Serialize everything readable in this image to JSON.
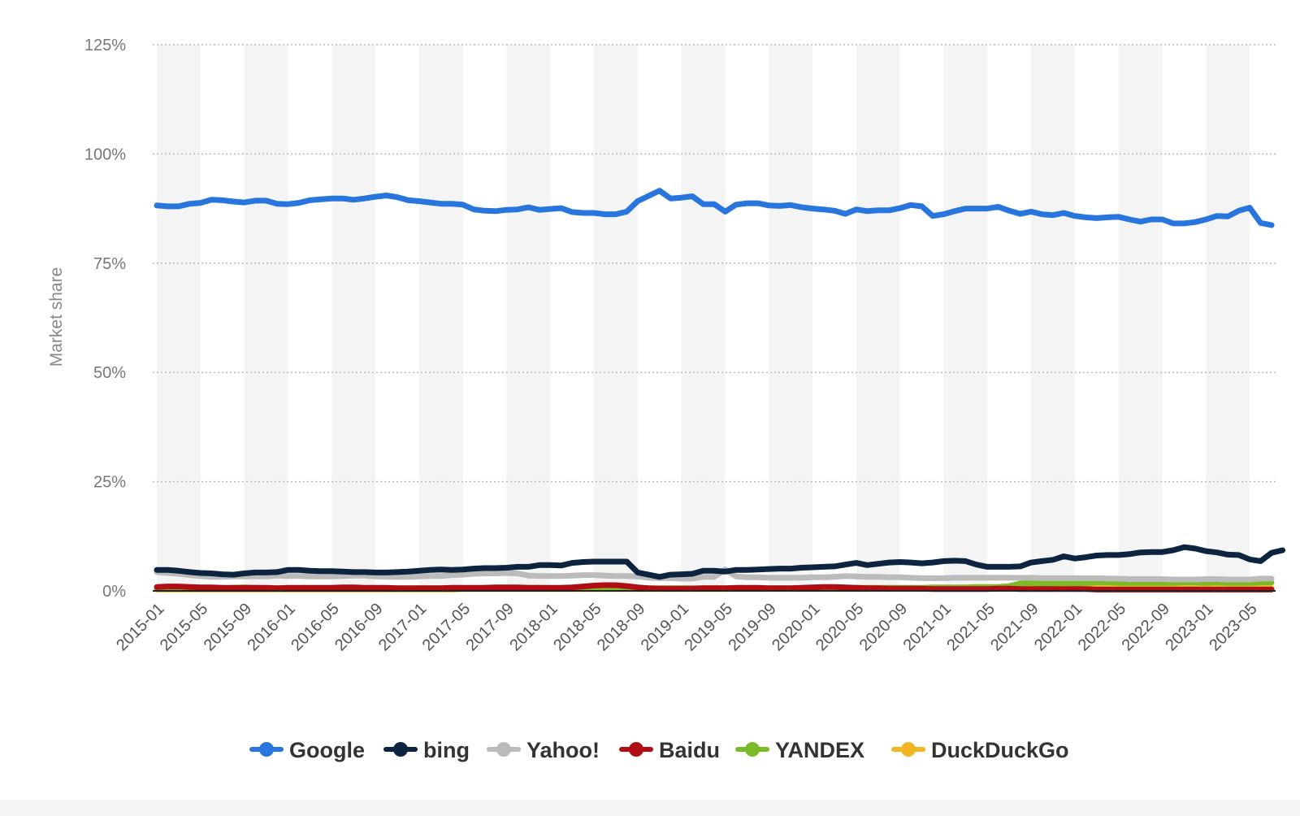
{
  "chart_data": {
    "type": "line",
    "title": "",
    "xlabel": "",
    "ylabel": "Market share",
    "ylim": [
      0,
      125
    ],
    "y_ticks": [
      "0%",
      "25%",
      "50%",
      "75%",
      "100%",
      "125%"
    ],
    "y_tick_values": [
      0,
      25,
      50,
      75,
      100,
      125
    ],
    "grid": true,
    "legend_position": "bottom",
    "x_tick_labels": [
      "2015-01",
      "2015-05",
      "2015-09",
      "2016-01",
      "2016-05",
      "2016-09",
      "2017-01",
      "2017-05",
      "2017-09",
      "2018-01",
      "2018-05",
      "2018-09",
      "2019-01",
      "2019-05",
      "2019-09",
      "2020-01",
      "2020-05",
      "2020-09",
      "2021-01",
      "2021-05",
      "2021-09",
      "2022-01",
      "2022-05",
      "2022-09",
      "2023-01",
      "2023-05"
    ],
    "x_start": "2015-01",
    "x_end": "2023-07",
    "series": [
      {
        "name": "Google",
        "color": "#2876DD",
        "values": [
          88.2,
          88.0,
          88.0,
          88.6,
          88.8,
          89.5,
          89.4,
          89.1,
          88.9,
          89.3,
          89.3,
          88.6,
          88.5,
          88.8,
          89.4,
          89.6,
          89.8,
          89.8,
          89.5,
          89.8,
          90.2,
          90.5,
          90.1,
          89.4,
          89.2,
          88.9,
          88.6,
          88.6,
          88.4,
          87.3,
          87.0,
          86.9,
          87.2,
          87.3,
          87.8,
          87.2,
          87.4,
          87.6,
          86.7,
          86.5,
          86.5,
          86.2,
          86.2,
          86.8,
          89.2,
          90.4,
          91.6,
          89.8,
          90.0,
          90.3,
          88.5,
          88.5,
          86.8,
          88.4,
          88.7,
          88.7,
          88.2,
          88.1,
          88.3,
          87.8,
          87.5,
          87.3,
          87.0,
          86.3,
          87.3,
          86.9,
          87.1,
          87.1,
          87.6,
          88.3,
          88.0,
          85.8,
          86.2,
          86.9,
          87.5,
          87.5,
          87.5,
          87.9,
          87.0,
          86.3,
          86.8,
          86.2,
          86.0,
          86.5,
          85.8,
          85.5,
          85.3,
          85.5,
          85.6,
          85.0,
          84.5,
          85.0,
          85.0,
          84.1,
          84.1,
          84.4,
          85.0,
          85.8,
          85.7,
          87.0,
          87.7,
          84.2,
          83.7
        ]
      },
      {
        "name": "bing",
        "color": "#0D2440",
        "values": [
          4.8,
          4.8,
          4.6,
          4.3,
          4.1,
          4.0,
          3.8,
          3.7,
          4.0,
          4.2,
          4.2,
          4.3,
          4.8,
          4.8,
          4.6,
          4.5,
          4.5,
          4.4,
          4.3,
          4.3,
          4.2,
          4.2,
          4.3,
          4.4,
          4.6,
          4.8,
          4.9,
          4.8,
          4.9,
          5.1,
          5.2,
          5.2,
          5.3,
          5.5,
          5.5,
          5.9,
          5.9,
          5.8,
          6.4,
          6.6,
          6.7,
          6.7,
          6.7,
          6.7,
          4.2,
          3.7,
          3.2,
          3.7,
          3.8,
          3.9,
          4.6,
          4.6,
          4.4,
          4.8,
          4.8,
          4.9,
          5.0,
          5.1,
          5.1,
          5.3,
          5.4,
          5.5,
          5.6,
          6.0,
          6.4,
          5.9,
          6.2,
          6.5,
          6.6,
          6.5,
          6.3,
          6.5,
          6.8,
          6.9,
          6.8,
          6.0,
          5.5,
          5.5,
          5.5,
          5.6,
          6.5,
          6.8,
          7.1,
          7.9,
          7.4,
          7.7,
          8.1,
          8.2,
          8.2,
          8.4,
          8.8,
          8.9,
          8.9,
          9.3,
          10.0,
          9.7,
          9.1,
          8.8,
          8.3,
          8.2,
          7.2,
          6.8,
          8.7,
          9.3
        ]
      },
      {
        "name": "Yahoo!",
        "color": "#BBBBBB",
        "values": [
          4.3,
          4.1,
          3.9,
          3.6,
          3.4,
          3.2,
          3.2,
          3.3,
          3.3,
          3.3,
          3.3,
          3.5,
          3.4,
          3.4,
          3.3,
          3.3,
          3.3,
          3.4,
          3.5,
          3.5,
          3.3,
          3.2,
          3.2,
          3.2,
          3.3,
          3.4,
          3.4,
          3.6,
          3.7,
          3.9,
          4.0,
          4.0,
          4.1,
          4.0,
          3.5,
          3.4,
          3.4,
          3.4,
          3.5,
          3.6,
          3.6,
          3.5,
          3.4,
          3.4,
          3.3,
          3.0,
          2.9,
          2.9,
          2.8,
          2.8,
          3.2,
          3.2,
          4.9,
          3.3,
          3.1,
          3.1,
          3.0,
          3.0,
          3.0,
          3.0,
          3.1,
          3.1,
          3.2,
          3.4,
          3.3,
          3.2,
          3.2,
          3.1,
          3.1,
          3.0,
          2.9,
          2.9,
          2.9,
          3.0,
          3.0,
          3.0,
          3.0,
          3.0,
          3.0,
          3.0,
          3.0,
          2.9,
          2.9,
          2.9,
          2.9,
          2.9,
          2.9,
          2.8,
          2.8,
          2.7,
          2.7,
          2.7,
          2.7,
          2.6,
          2.6,
          2.6,
          2.7,
          2.7,
          2.6,
          2.6,
          2.6,
          2.8,
          2.8
        ]
      },
      {
        "name": "Baidu",
        "color": "#B00E14",
        "values": [
          0.9,
          1.0,
          1.0,
          0.9,
          0.8,
          0.8,
          0.7,
          0.7,
          0.7,
          0.7,
          0.7,
          0.6,
          0.7,
          0.7,
          0.7,
          0.7,
          0.7,
          0.8,
          0.8,
          0.7,
          0.7,
          0.7,
          0.6,
          0.6,
          0.6,
          0.6,
          0.6,
          0.7,
          0.7,
          0.7,
          0.7,
          0.8,
          0.8,
          0.8,
          0.7,
          0.7,
          0.7,
          0.7,
          0.8,
          1.0,
          1.2,
          1.3,
          1.3,
          1.1,
          0.8,
          0.6,
          0.5,
          0.5,
          0.5,
          0.5,
          0.6,
          0.6,
          0.6,
          0.7,
          0.7,
          0.7,
          0.6,
          0.6,
          0.6,
          0.7,
          0.8,
          0.9,
          0.9,
          0.8,
          0.7,
          0.6,
          0.6,
          0.5,
          0.5,
          0.5,
          0.5,
          0.4,
          0.4,
          0.4,
          0.4,
          0.4,
          0.4,
          0.5,
          0.5,
          0.4,
          0.4,
          0.4,
          0.4,
          0.4,
          0.4,
          0.4,
          0.3,
          0.3,
          0.3,
          0.3,
          0.3,
          0.3,
          0.3,
          0.3,
          0.3,
          0.3,
          0.3,
          0.3,
          0.3,
          0.3,
          0.3,
          0.3,
          0.3
        ]
      },
      {
        "name": "YANDEX",
        "color": "#7CBB28",
        "values": [
          0.5,
          0.6,
          0.6,
          0.6,
          0.6,
          0.5,
          0.5,
          0.7,
          0.8,
          0.7,
          0.6,
          0.6,
          0.6,
          0.6,
          0.6,
          0.6,
          0.6,
          0.6,
          0.6,
          0.6,
          0.6,
          0.6,
          0.6,
          0.6,
          0.6,
          0.6,
          0.6,
          0.6,
          0.6,
          0.6,
          0.7,
          0.7,
          0.7,
          0.7,
          0.7,
          0.7,
          0.6,
          0.6,
          0.6,
          0.6,
          0.6,
          0.6,
          0.6,
          0.6,
          0.6,
          0.6,
          0.6,
          0.6,
          0.6,
          0.6,
          0.6,
          0.6,
          0.6,
          0.6,
          0.6,
          0.6,
          0.6,
          0.6,
          0.6,
          0.6,
          0.6,
          0.6,
          0.7,
          0.7,
          0.7,
          0.7,
          0.7,
          0.7,
          0.7,
          0.7,
          0.7,
          0.8,
          0.8,
          0.8,
          0.8,
          0.9,
          0.9,
          0.9,
          1.1,
          1.7,
          1.8,
          1.6,
          1.7,
          1.8,
          1.7,
          1.8,
          1.9,
          1.9,
          1.8,
          1.8,
          1.8,
          1.8,
          1.8,
          1.8,
          1.9,
          1.9,
          1.8,
          1.9,
          1.8,
          1.8,
          1.8,
          1.9,
          1.9
        ]
      },
      {
        "name": "DuckDuckGo",
        "color": "#F1B624",
        "values": [
          0.3,
          0.3,
          0.3,
          0.3,
          0.3,
          0.3,
          0.3,
          0.3,
          0.3,
          0.3,
          0.3,
          0.3,
          0.3,
          0.3,
          0.3,
          0.3,
          0.3,
          0.3,
          0.3,
          0.3,
          0.3,
          0.3,
          0.3,
          0.3,
          0.3,
          0.3,
          0.3,
          0.3,
          0.4,
          0.4,
          0.4,
          0.4,
          0.4,
          0.4,
          0.4,
          0.4,
          0.4,
          0.4,
          0.4,
          0.4,
          0.4,
          0.4,
          0.4,
          0.4,
          0.4,
          0.4,
          0.4,
          0.4,
          0.4,
          0.4,
          0.4,
          0.4,
          0.4,
          0.5,
          0.5,
          0.5,
          0.5,
          0.5,
          0.5,
          0.5,
          0.5,
          0.5,
          0.5,
          0.5,
          0.6,
          0.6,
          0.6,
          0.6,
          0.6,
          0.6,
          0.6,
          0.6,
          0.6,
          0.6,
          0.6,
          0.6,
          0.6,
          0.6,
          0.6,
          0.6,
          0.6,
          0.6,
          0.6,
          0.6,
          0.6,
          0.6,
          0.6,
          0.6,
          0.6,
          0.6,
          0.6,
          0.6,
          0.6,
          0.6,
          0.6,
          0.6,
          0.6,
          0.6,
          0.6,
          0.6,
          0.6,
          0.6,
          0.6
        ]
      }
    ]
  }
}
